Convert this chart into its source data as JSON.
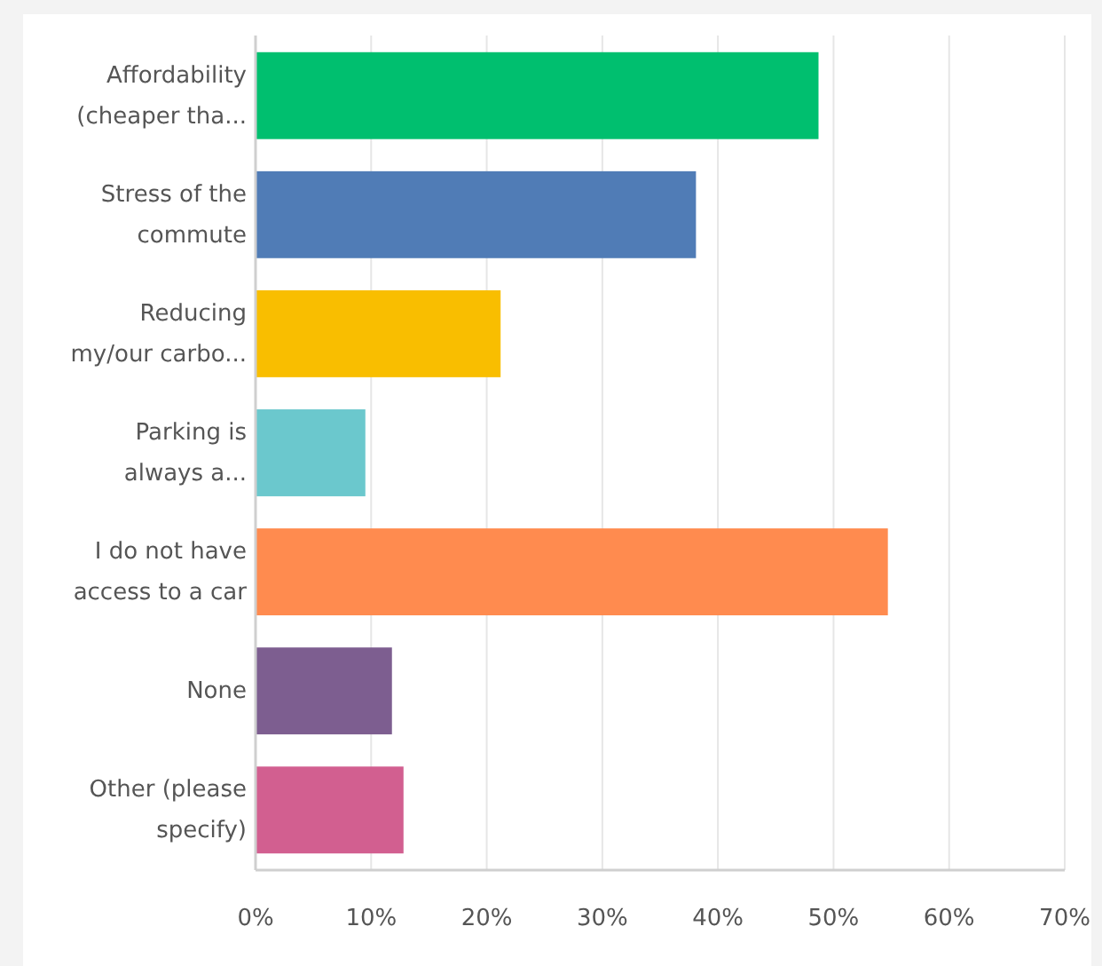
{
  "chart_data": {
    "type": "bar",
    "orientation": "horizontal",
    "categories": [
      "Affordability\n(cheaper tha...",
      "Stress of the\ncommute",
      "Reducing\nmy/our carbo...",
      "Parking is\nalways a...",
      "I do not have\naccess to a car",
      "None",
      "Other (please\nspecify)"
    ],
    "values": [
      48.7,
      38.1,
      21.2,
      9.5,
      54.7,
      11.8,
      12.8
    ],
    "colors": [
      "#00bf6f",
      "#507cb6",
      "#f9be00",
      "#6bc8cd",
      "#ff8b4f",
      "#7d5e90",
      "#d25f90"
    ],
    "xlim": [
      0,
      70
    ],
    "xticks": [
      {
        "value": 0,
        "label": "0%"
      },
      {
        "value": 10,
        "label": "10%"
      },
      {
        "value": 20,
        "label": "20%"
      },
      {
        "value": 30,
        "label": "30%"
      },
      {
        "value": 40,
        "label": "40%"
      },
      {
        "value": 50,
        "label": "50%"
      },
      {
        "value": 60,
        "label": "60%"
      },
      {
        "value": 70,
        "label": "70%"
      }
    ],
    "grid": "x"
  }
}
